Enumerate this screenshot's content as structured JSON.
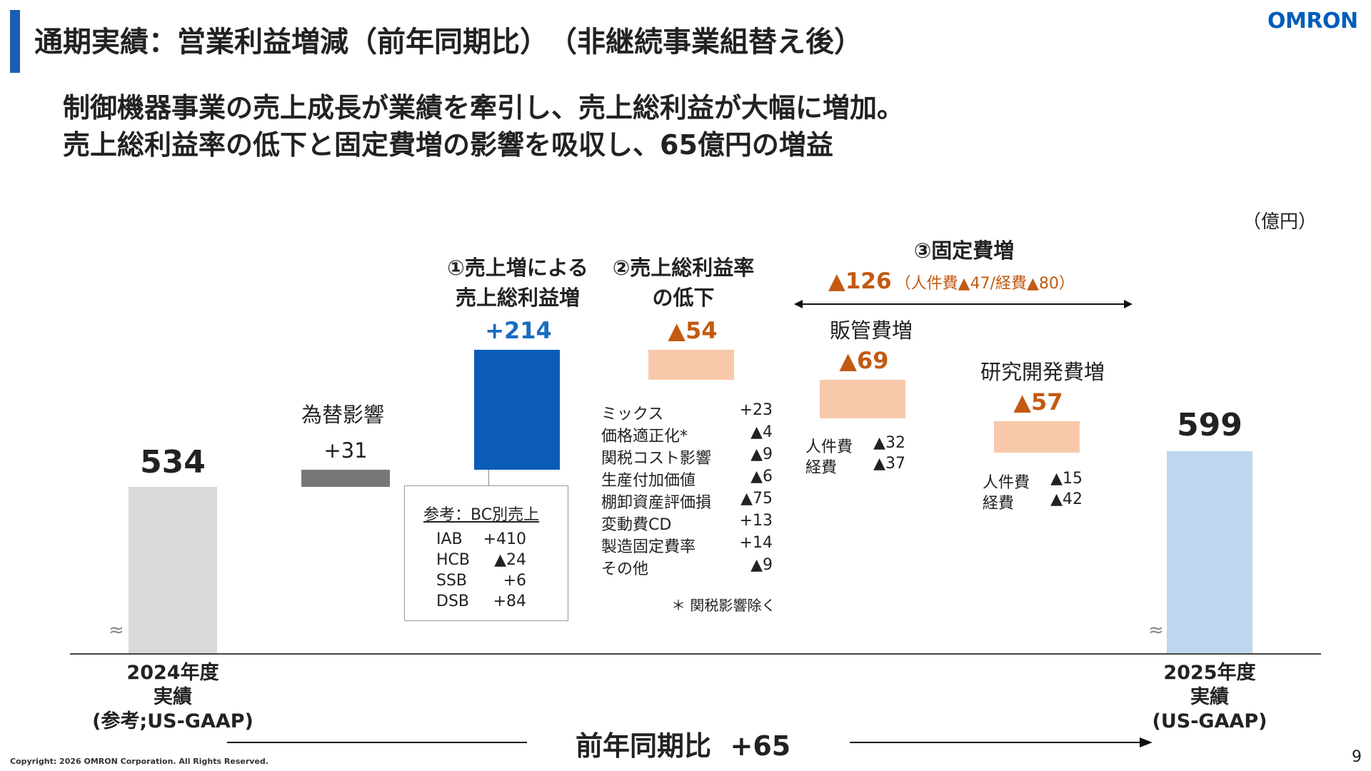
{
  "header": {
    "title": "通期実績：営業利益増減（前年同期比）　（非継続事業組替え後）",
    "logo": "OMRON"
  },
  "headline": {
    "line1": "制御機器事業の売上成長が業績を牽引し、売上総利益が大幅に増加。",
    "line2": "売上総利益率の低下と固定費増の影響を吸収し、65億円の増益"
  },
  "unit_label": "（億円）",
  "steps": {
    "start": {
      "value": "534",
      "label_line1": "2024年度",
      "label_line2": "実績",
      "label_line3": "(参考;US-GAAP)"
    },
    "fx": {
      "title": "為替影響",
      "value": "+31"
    },
    "gross_profit": {
      "title_line1": "①売上増による",
      "title_line2": "売上総利益増",
      "value": "+214"
    },
    "margin": {
      "title_line1": "②売上総利益率",
      "title_line2": "の低下",
      "value": "▲54"
    },
    "fixed": {
      "title": "③固定費増",
      "total": "▲126",
      "breakdown": "（人件費▲47/経費▲80）",
      "sga": {
        "title": "販管費増",
        "value": "▲69",
        "rows": [
          [
            "人件費",
            "▲32"
          ],
          [
            "経費",
            "▲37"
          ]
        ]
      },
      "rnd": {
        "title": "研究開発費増",
        "value": "▲57",
        "rows": [
          [
            "人件費",
            "▲15"
          ],
          [
            "経費",
            "▲42"
          ]
        ]
      }
    },
    "end": {
      "value": "599",
      "label_line1": "2025年度",
      "label_line2": "実績",
      "label_line3": "(US-GAAP)"
    }
  },
  "bc_sales": {
    "title": "参考：BC別売上",
    "rows": [
      [
        "IAB",
        "+410"
      ],
      [
        "HCB",
        "▲24"
      ],
      [
        "SSB",
        "+6"
      ],
      [
        "DSB",
        "+84"
      ]
    ]
  },
  "margin_breakdown": {
    "rows": [
      [
        "ミックス",
        "+23"
      ],
      [
        "価格適正化*",
        "▲4"
      ],
      [
        "関税コスト影響",
        "▲9"
      ],
      [
        "生産付加価値",
        "▲6"
      ],
      [
        "棚卸資産評価損",
        "▲75"
      ],
      [
        "変動費CD",
        "+13"
      ],
      [
        "製造固定費率",
        "+14"
      ],
      [
        "その他",
        "▲9"
      ]
    ],
    "footnote": "＊ 関税影響除く"
  },
  "comparison": {
    "label": "前年同期比",
    "value": "+65"
  },
  "footer": {
    "copyright": "Copyright: 2026 OMRON Corporation. All Rights Reserved.",
    "page": "9"
  },
  "colors": {
    "brand": "#005eb8",
    "increase": "#0a5cb8",
    "decrease": "#f7c9aa",
    "fx": "#777777",
    "start": "#d9d9d9",
    "end": "#bdd7ee",
    "decrease_text": "#c25a12"
  }
}
